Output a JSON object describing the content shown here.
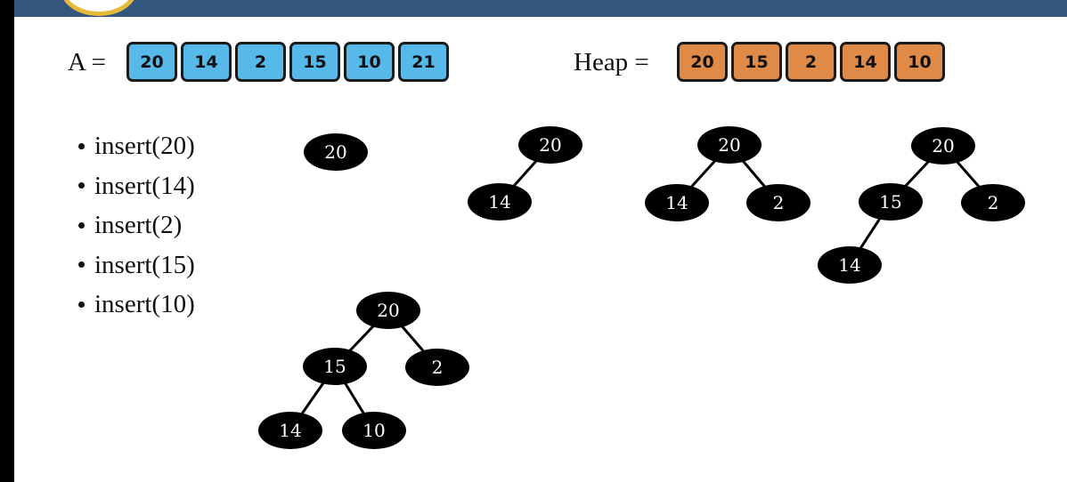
{
  "array": {
    "label": "A =",
    "values": [
      "20",
      "14",
      "2",
      "15",
      "10",
      "21"
    ],
    "color": "#57b8ea"
  },
  "heap": {
    "label": "Heap =",
    "values": [
      "20",
      "15",
      "2",
      "14",
      "10"
    ],
    "color": "#e08a48"
  },
  "operations": [
    "insert(20)",
    "insert(14)",
    "insert(2)",
    "insert(15)",
    "insert(10)"
  ],
  "trees": [
    {
      "name": "tree-after-insert-20",
      "nodes": [
        {
          "id": "a",
          "label": "20"
        }
      ],
      "edges": []
    },
    {
      "name": "tree-after-insert-14",
      "nodes": [
        {
          "id": "a",
          "label": "20"
        },
        {
          "id": "b",
          "label": "14"
        }
      ],
      "edges": [
        [
          "a",
          "b"
        ]
      ]
    },
    {
      "name": "tree-after-insert-2",
      "nodes": [
        {
          "id": "a",
          "label": "20"
        },
        {
          "id": "b",
          "label": "14"
        },
        {
          "id": "c",
          "label": "2"
        }
      ],
      "edges": [
        [
          "a",
          "b"
        ],
        [
          "a",
          "c"
        ]
      ]
    },
    {
      "name": "tree-after-insert-15",
      "nodes": [
        {
          "id": "a",
          "label": "20"
        },
        {
          "id": "b",
          "label": "15"
        },
        {
          "id": "c",
          "label": "2"
        },
        {
          "id": "d",
          "label": "14"
        }
      ],
      "edges": [
        [
          "a",
          "b"
        ],
        [
          "a",
          "c"
        ],
        [
          "b",
          "d"
        ]
      ]
    },
    {
      "name": "tree-after-insert-10",
      "nodes": [
        {
          "id": "a",
          "label": "20"
        },
        {
          "id": "b",
          "label": "15"
        },
        {
          "id": "c",
          "label": "2"
        },
        {
          "id": "d",
          "label": "14"
        },
        {
          "id": "e",
          "label": "10"
        }
      ],
      "edges": [
        [
          "a",
          "b"
        ],
        [
          "a",
          "c"
        ],
        [
          "b",
          "d"
        ],
        [
          "b",
          "e"
        ]
      ]
    }
  ],
  "colors": {
    "header_bar": "#33567f",
    "node_fill": "#000000",
    "node_text": "#ffffff"
  }
}
